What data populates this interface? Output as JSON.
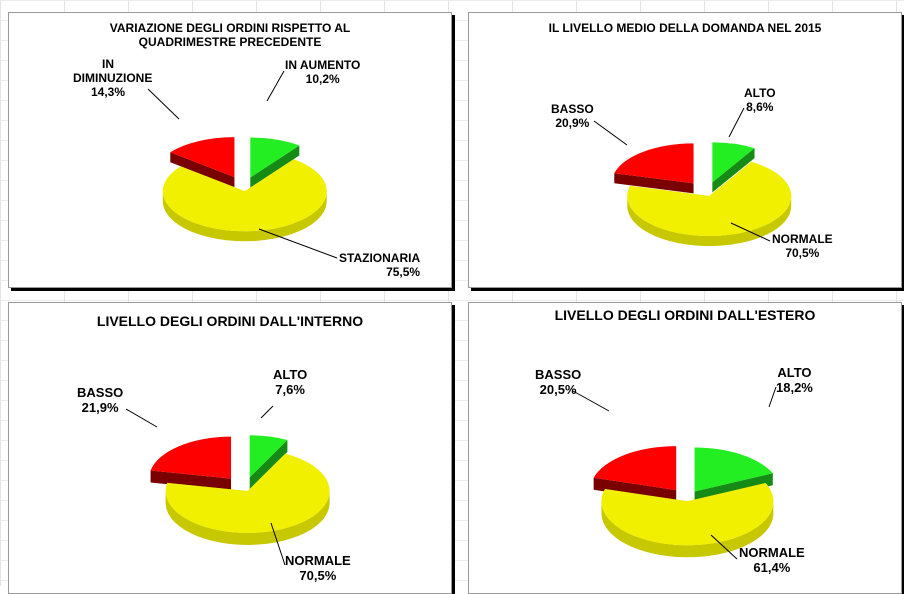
{
  "colors": {
    "up": "#22ee22",
    "up_side": "#158a15",
    "down": "#ff0000",
    "down_side": "#7a0000",
    "neutral": "#f0f000",
    "neutral_side": "#c8c800"
  },
  "chart_data": [
    {
      "type": "pie",
      "title": "VARIAZIONE DEGLI ORDINI RISPETTO AL QUADRIMESTRE PRECEDENTE",
      "slices": [
        {
          "name": "IN AUMENTO",
          "value": 10.2,
          "value_label": "10,2%",
          "color": "up"
        },
        {
          "name": "STAZIONARIA",
          "value": 75.5,
          "value_label": "75,5%",
          "color": "neutral"
        },
        {
          "name": "IN DIMINUZIONE",
          "value": 14.3,
          "value_label": "14,3%",
          "color": "down"
        }
      ]
    },
    {
      "type": "pie",
      "title": "IL LIVELLO MEDIO DELLA DOMANDA NEL 2015",
      "slices": [
        {
          "name": "ALTO",
          "value": 8.6,
          "value_label": "8,6%",
          "color": "up"
        },
        {
          "name": "NORMALE",
          "value": 70.5,
          "value_label": "70,5%",
          "color": "neutral"
        },
        {
          "name": "BASSO",
          "value": 20.9,
          "value_label": "20,9%",
          "color": "down"
        }
      ]
    },
    {
      "type": "pie",
      "title": "LIVELLO DEGLI ORDINI  DALL'INTERNO",
      "slices": [
        {
          "name": "ALTO",
          "value": 7.6,
          "value_label": "7,6%",
          "color": "up"
        },
        {
          "name": "NORMALE",
          "value": 70.5,
          "value_label": "70,5%",
          "color": "neutral"
        },
        {
          "name": "BASSO",
          "value": 21.9,
          "value_label": "21,9%",
          "color": "down"
        }
      ]
    },
    {
      "type": "pie",
      "title": "LIVELLO DEGLI ORDINI DALL'ESTERO",
      "slices": [
        {
          "name": "ALTO",
          "value": 18.2,
          "value_label": "18,2%",
          "color": "up"
        },
        {
          "name": "NORMALE",
          "value": 61.4,
          "value_label": "61,4%",
          "color": "neutral"
        },
        {
          "name": "BASSO",
          "value": 20.5,
          "value_label": "20,5%",
          "color": "down"
        }
      ]
    }
  ]
}
